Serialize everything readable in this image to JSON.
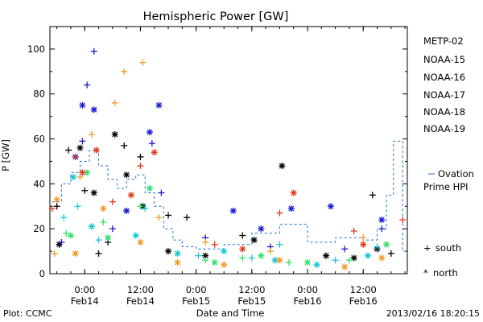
{
  "chart_data": {
    "type": "scatter",
    "title": "Hemispheric Power [GW]",
    "xlabel": "Date and Time",
    "ylabel": "P [GW]",
    "ylim": [
      0,
      110
    ],
    "xlim": [
      "2013-02-13 16:30",
      "2013-02-16 21:30"
    ],
    "yticks": [
      0,
      20,
      40,
      60,
      80,
      100
    ],
    "xticks": [
      {
        "t": "2013-02-14 00:00",
        "label1": "0:00",
        "label2": "Feb14"
      },
      {
        "t": "2013-02-14 12:00",
        "label1": "12:00",
        "label2": "Feb14"
      },
      {
        "t": "2013-02-15 00:00",
        "label1": "0:00",
        "label2": "Feb15"
      },
      {
        "t": "2013-02-15 12:00",
        "label1": "12:00",
        "label2": "Feb15"
      },
      {
        "t": "2013-02-16 00:00",
        "label1": "0:00",
        "label2": "Feb16"
      },
      {
        "t": "2013-02-16 12:00",
        "label1": "12:00",
        "label2": "Feb16"
      }
    ],
    "grid": false,
    "legend_position": "right",
    "series": [
      {
        "name": "METP-02",
        "color": "#000000",
        "south": [
          [
            "2013-02-13 18:00",
            30
          ],
          [
            "2013-02-13 20:30",
            55
          ],
          [
            "2013-02-14 00:00",
            37
          ],
          [
            "2013-02-14 03:00",
            9
          ],
          [
            "2013-02-14 05:00",
            14
          ],
          [
            "2013-02-14 08:30",
            57
          ],
          [
            "2013-02-14 12:00",
            52
          ],
          [
            "2013-02-14 18:00",
            26
          ],
          [
            "2013-02-14 22:00",
            25
          ],
          [
            "2013-02-15 10:00",
            17
          ],
          [
            "2013-02-16 14:00",
            35
          ],
          [
            "2013-02-16 18:00",
            9
          ]
        ],
        "north": [
          [
            "2013-02-13 18:30",
            13
          ],
          [
            "2013-02-13 23:00",
            56
          ],
          [
            "2013-02-14 02:00",
            36
          ],
          [
            "2013-02-14 06:30",
            62
          ],
          [
            "2013-02-14 09:00",
            44
          ],
          [
            "2013-02-14 12:30",
            30
          ],
          [
            "2013-02-14 18:00",
            10
          ],
          [
            "2013-02-15 02:00",
            8
          ],
          [
            "2013-02-15 12:30",
            15
          ],
          [
            "2013-02-15 18:30",
            48
          ],
          [
            "2013-02-16 04:00",
            8
          ],
          [
            "2013-02-16 10:00",
            7
          ],
          [
            "2013-02-16 15:00",
            11
          ]
        ]
      },
      {
        "name": "NOAA-15",
        "color": "#1a1ad6",
        "south": [
          [
            "2013-02-13 19:00",
            14
          ],
          [
            "2013-02-13 23:30",
            59
          ],
          [
            "2013-02-14 00:30",
            84
          ],
          [
            "2013-02-14 02:00",
            99
          ],
          [
            "2013-02-14 06:00",
            20
          ],
          [
            "2013-02-14 14:30",
            58
          ],
          [
            "2013-02-14 16:30",
            36
          ],
          [
            "2013-02-15 02:00",
            16
          ],
          [
            "2013-02-15 16:00",
            12
          ],
          [
            "2013-02-16 08:00",
            11
          ],
          [
            "2013-02-16 16:00",
            20
          ]
        ],
        "north": [
          [
            "2013-02-13 22:00",
            52
          ],
          [
            "2013-02-13 23:30",
            75
          ],
          [
            "2013-02-14 02:00",
            73
          ],
          [
            "2013-02-14 09:00",
            28
          ],
          [
            "2013-02-14 14:00",
            63
          ],
          [
            "2013-02-14 16:00",
            75
          ],
          [
            "2013-02-15 08:00",
            28
          ],
          [
            "2013-02-15 14:00",
            20
          ],
          [
            "2013-02-15 20:30",
            29
          ],
          [
            "2013-02-16 05:00",
            30
          ],
          [
            "2013-02-16 16:00",
            24
          ]
        ]
      },
      {
        "name": "NOAA-16",
        "color": "#18c8d6",
        "south": [
          [
            "2013-02-13 19:30",
            25
          ],
          [
            "2013-02-13 22:30",
            30
          ],
          [
            "2013-02-14 03:00",
            15
          ],
          [
            "2013-02-14 13:00",
            29
          ],
          [
            "2013-02-15 00:30",
            8
          ],
          [
            "2013-02-15 12:00",
            7
          ],
          [
            "2013-02-15 18:00",
            13
          ],
          [
            "2013-02-16 06:00",
            6
          ],
          [
            "2013-02-16 15:00",
            12
          ]
        ],
        "north": [
          [
            "2013-02-13 21:30",
            43
          ],
          [
            "2013-02-14 01:30",
            21
          ],
          [
            "2013-02-14 11:00",
            17
          ],
          [
            "2013-02-14 20:00",
            9
          ],
          [
            "2013-02-15 06:00",
            10
          ],
          [
            "2013-02-15 17:00",
            6
          ],
          [
            "2013-02-16 02:00",
            4
          ],
          [
            "2013-02-16 13:00",
            8
          ]
        ]
      },
      {
        "name": "NOAA-17",
        "color": "#33e06a",
        "south": [
          [
            "2013-02-13 20:00",
            18
          ],
          [
            "2013-02-14 04:00",
            23
          ],
          [
            "2013-02-14 12:00",
            30
          ],
          [
            "2013-02-15 02:00",
            6
          ],
          [
            "2013-02-15 10:00",
            7
          ],
          [
            "2013-02-15 20:00",
            5
          ],
          [
            "2013-02-16 09:00",
            6
          ]
        ],
        "north": [
          [
            "2013-02-13 21:00",
            17
          ],
          [
            "2013-02-14 00:30",
            45
          ],
          [
            "2013-02-14 05:00",
            16
          ],
          [
            "2013-02-14 14:00",
            38
          ],
          [
            "2013-02-15 04:00",
            5
          ],
          [
            "2013-02-15 14:00",
            8
          ],
          [
            "2013-02-16 00:00",
            5
          ],
          [
            "2013-02-16 17:00",
            13
          ]
        ]
      },
      {
        "name": "NOAA-18",
        "color": "#f29a28",
        "south": [
          [
            "2013-02-13 17:30",
            9
          ],
          [
            "2013-02-13 23:00",
            43
          ],
          [
            "2013-02-14 01:30",
            62
          ],
          [
            "2013-02-14 06:30",
            76
          ],
          [
            "2013-02-14 08:30",
            90
          ],
          [
            "2013-02-14 12:30",
            94
          ],
          [
            "2013-02-14 16:00",
            25
          ],
          [
            "2013-02-15 02:00",
            14
          ],
          [
            "2013-02-15 16:00",
            10
          ],
          [
            "2013-02-16 12:00",
            16
          ]
        ],
        "north": [
          [
            "2013-02-13 18:00",
            33
          ],
          [
            "2013-02-13 22:00",
            9
          ],
          [
            "2013-02-14 04:00",
            29
          ],
          [
            "2013-02-14 12:00",
            14
          ],
          [
            "2013-02-14 20:00",
            5
          ],
          [
            "2013-02-15 06:00",
            4
          ],
          [
            "2013-02-15 18:00",
            6
          ],
          [
            "2013-02-16 08:00",
            3
          ],
          [
            "2013-02-16 16:00",
            7
          ]
        ]
      },
      {
        "name": "NOAA-19",
        "color": "#e23a1c",
        "south": [
          [
            "2013-02-13 17:00",
            29
          ],
          [
            "2013-02-13 22:00",
            52
          ],
          [
            "2013-02-14 06:00",
            32
          ],
          [
            "2013-02-14 12:00",
            48
          ],
          [
            "2013-02-15 04:00",
            13
          ],
          [
            "2013-02-15 18:00",
            27
          ],
          [
            "2013-02-16 10:00",
            19
          ],
          [
            "2013-02-16 20:30",
            24
          ]
        ],
        "north": [
          [
            "2013-02-13 23:30",
            45
          ],
          [
            "2013-02-14 02:30",
            55
          ],
          [
            "2013-02-14 10:00",
            35
          ],
          [
            "2013-02-14 15:00",
            54
          ],
          [
            "2013-02-15 10:00",
            11
          ],
          [
            "2013-02-15 21:00",
            36
          ],
          [
            "2013-02-16 12:00",
            13
          ]
        ]
      },
      {
        "name": "Ovation Prime HPI",
        "color": "#1a6fd6",
        "style": "dashed-step",
        "points": [
          [
            "2013-02-13 17:00",
            32
          ],
          [
            "2013-02-13 19:00",
            40
          ],
          [
            "2013-02-13 21:00",
            45
          ],
          [
            "2013-02-13 23:00",
            50
          ],
          [
            "2013-02-14 01:00",
            55
          ],
          [
            "2013-02-14 03:00",
            48
          ],
          [
            "2013-02-14 05:00",
            42
          ],
          [
            "2013-02-14 07:00",
            38
          ],
          [
            "2013-02-14 09:00",
            42
          ],
          [
            "2013-02-14 11:00",
            44
          ],
          [
            "2013-02-14 13:00",
            36
          ],
          [
            "2013-02-14 15:00",
            30
          ],
          [
            "2013-02-14 17:00",
            20
          ],
          [
            "2013-02-14 19:00",
            15
          ],
          [
            "2013-02-14 21:00",
            12
          ],
          [
            "2013-02-15 00:00",
            11
          ],
          [
            "2013-02-15 06:00",
            13
          ],
          [
            "2013-02-15 12:00",
            18
          ],
          [
            "2013-02-15 18:00",
            22
          ],
          [
            "2013-02-16 00:00",
            14
          ],
          [
            "2013-02-16 06:00",
            16
          ],
          [
            "2013-02-16 12:00",
            15
          ],
          [
            "2013-02-16 15:00",
            20
          ],
          [
            "2013-02-16 17:00",
            35
          ],
          [
            "2013-02-16 18:30",
            59
          ],
          [
            "2013-02-16 20:30",
            10
          ]
        ]
      }
    ],
    "marker_legend": [
      {
        "symbol": "+",
        "label": "south"
      },
      {
        "symbol": "*",
        "label": "north"
      }
    ]
  },
  "footer": {
    "left": "Plot: CCMC",
    "right": "2013/02/16 18:20:15"
  },
  "colors": {
    "background": "#ffffff",
    "axis": "#000000"
  }
}
